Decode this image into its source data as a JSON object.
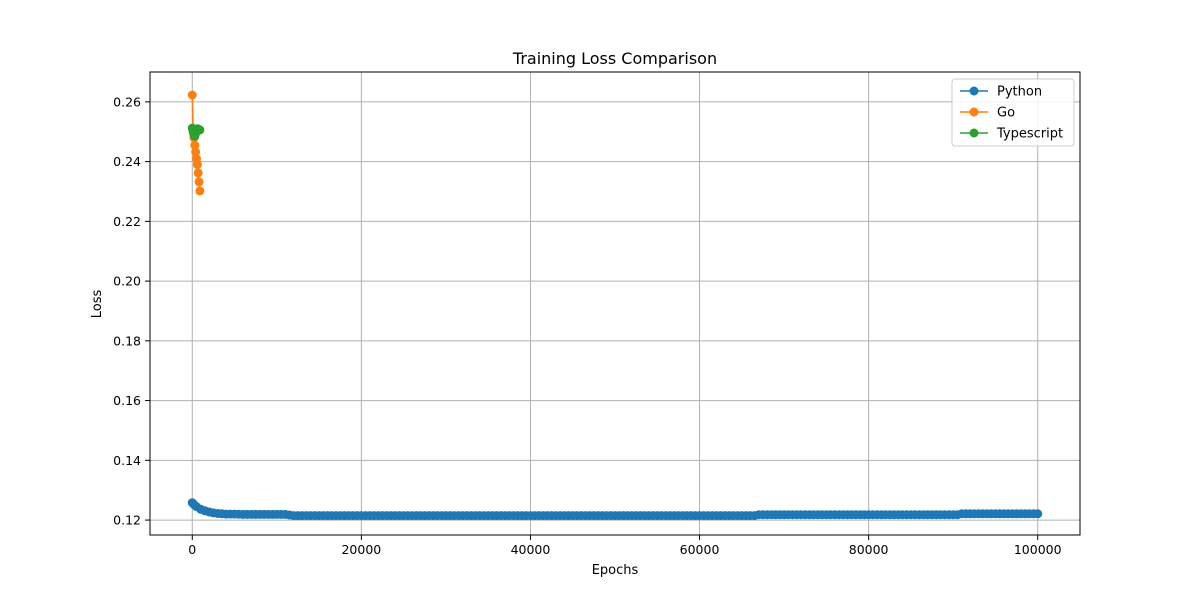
{
  "chart_data": {
    "type": "line",
    "title": "Training Loss Comparison",
    "xlabel": "Epochs",
    "ylabel": "Loss",
    "xlim": [
      -5000,
      105000
    ],
    "ylim": [
      0.115,
      0.27
    ],
    "xticks": [
      0,
      20000,
      40000,
      60000,
      80000,
      100000
    ],
    "yticks": [
      0.12,
      0.14,
      0.16,
      0.18,
      0.2,
      0.22,
      0.24,
      0.26
    ],
    "xtick_labels": [
      "0",
      "20000",
      "40000",
      "60000",
      "80000",
      "100000"
    ],
    "ytick_labels": [
      "0.12",
      "0.14",
      "0.16",
      "0.18",
      "0.20",
      "0.22",
      "0.24",
      "0.26"
    ],
    "grid": true,
    "legend_position": "top-right",
    "series": [
      {
        "name": "Python",
        "color": "#1f77b4",
        "x": [
          0,
          200,
          500,
          1000,
          1500,
          2000,
          2500,
          3000,
          3500,
          4000,
          5000,
          6000,
          8000,
          10000,
          11000,
          12000,
          15000,
          20000,
          25000,
          30000,
          35000,
          40000,
          45000,
          50000,
          55000,
          60000,
          65000,
          66500,
          67000,
          70000,
          75000,
          80000,
          85000,
          90000,
          90500,
          91000,
          95000,
          100000
        ],
        "y": [
          0.1258,
          0.1252,
          0.1245,
          0.1236,
          0.1231,
          0.1227,
          0.1224,
          0.1222,
          0.1221,
          0.122,
          0.122,
          0.1219,
          0.1219,
          0.1219,
          0.1219,
          0.1215,
          0.1215,
          0.1215,
          0.1215,
          0.1215,
          0.1215,
          0.1215,
          0.1215,
          0.1215,
          0.1215,
          0.1215,
          0.1215,
          0.1215,
          0.1218,
          0.1218,
          0.1218,
          0.1218,
          0.1218,
          0.1218,
          0.1218,
          0.1221,
          0.1221,
          0.1221
        ]
      },
      {
        "name": "Go",
        "color": "#ff7f0e",
        "x": [
          0,
          100,
          200,
          300,
          400,
          500,
          600,
          700,
          800,
          900
        ],
        "y": [
          0.2623,
          0.251,
          0.248,
          0.2455,
          0.2432,
          0.241,
          0.239,
          0.2362,
          0.2332,
          0.2302
        ]
      },
      {
        "name": "Typescript",
        "color": "#2ca02c",
        "x": [
          0,
          100,
          200,
          300,
          400,
          500,
          600,
          700,
          800,
          900
        ],
        "y": [
          0.2512,
          0.25,
          0.249,
          0.2485,
          0.2495,
          0.2505,
          0.251,
          0.2509,
          0.2507,
          0.2506
        ]
      }
    ]
  }
}
